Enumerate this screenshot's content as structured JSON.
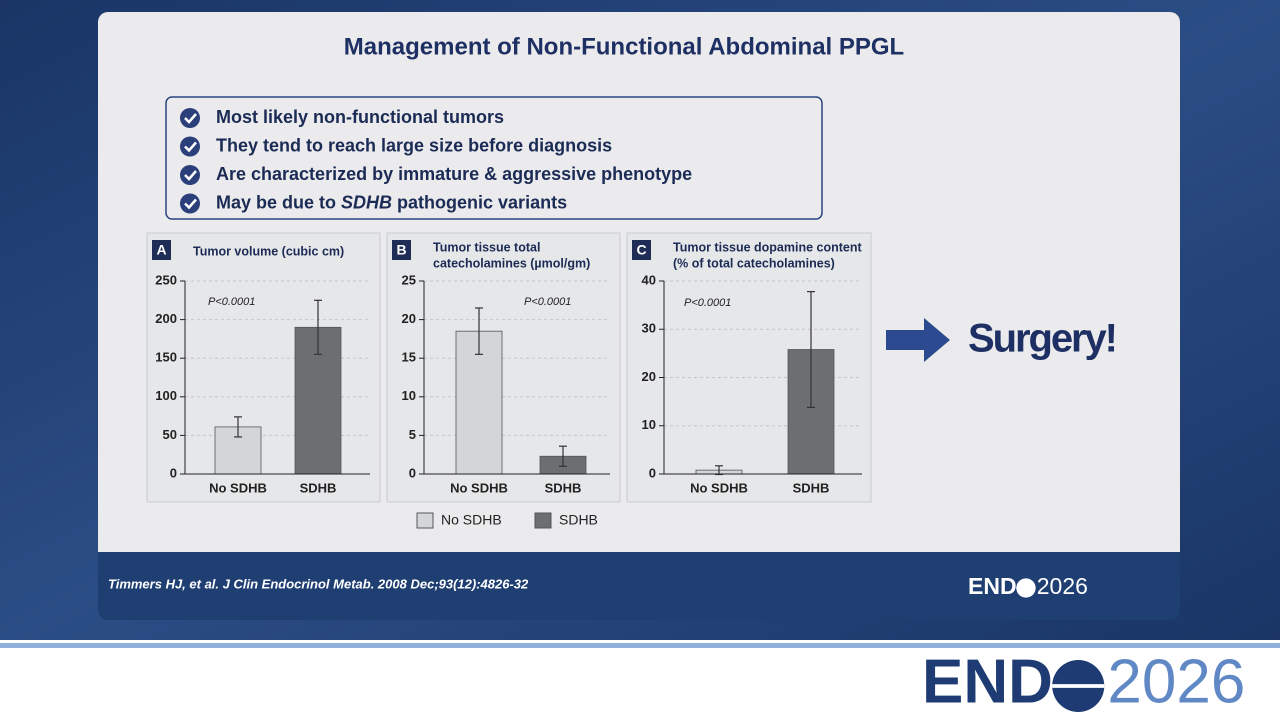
{
  "slide": {
    "title": "Management of Non-Functional Abdominal PPGL",
    "bullets": [
      [
        "Most likely non-functional tumors"
      ],
      [
        "They tend to reach large size before diagnosis"
      ],
      [
        "Are characterized by immature & aggressive phenotype"
      ],
      [
        "May be due to ",
        {
          "text": "SDHB",
          "italic": true
        },
        " pathogenic variants"
      ]
    ],
    "callout": "Surgery!",
    "citation": "Timmers HJ, et al. J Clin Endocrinol Metab. 2008 Dec;93(12):4826-32",
    "logo": {
      "left": "END",
      "right": "2026"
    }
  },
  "chart_data": [
    {
      "type": "bar",
      "panel": "A",
      "title": [
        "Tumor volume (cubic cm)"
      ],
      "annotation": "P<0.0001",
      "categories": [
        "No SDHB",
        "SDHB"
      ],
      "values": [
        61,
        190
      ],
      "errors": [
        13,
        35
      ],
      "colors": [
        "#d3d6d9",
        "#6c6f72"
      ],
      "ylim": [
        0,
        250
      ],
      "yticks": [
        0,
        50,
        100,
        150,
        200,
        250
      ],
      "grid": true
    },
    {
      "type": "bar",
      "panel": "B",
      "title": [
        "Tumor tissue total",
        "catecholamines (µmol/gm)"
      ],
      "annotation": "P<0.0001",
      "categories": [
        "No SDHB",
        "SDHB"
      ],
      "values": [
        18.5,
        2.3
      ],
      "errors": [
        3,
        1.3
      ],
      "colors": [
        "#d3d6d9",
        "#6c6f72"
      ],
      "ylim": [
        0,
        25
      ],
      "yticks": [
        0,
        5,
        10,
        15,
        20,
        25
      ],
      "grid": true
    },
    {
      "type": "bar",
      "panel": "C",
      "title": [
        "Tumor tissue dopamine content",
        "(% of total catecholamines)"
      ],
      "annotation": "P<0.0001",
      "categories": [
        "No SDHB",
        "SDHB"
      ],
      "values": [
        0.8,
        25.8
      ],
      "errors": [
        0.9,
        12
      ],
      "colors": [
        "#d3d6d9",
        "#6c6f72"
      ],
      "ylim": [
        0,
        40
      ],
      "yticks": [
        0,
        10,
        20,
        30,
        40
      ],
      "grid": true
    }
  ]
}
